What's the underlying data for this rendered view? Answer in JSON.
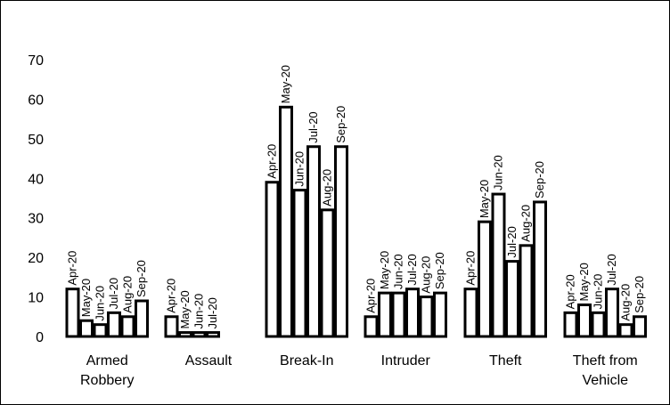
{
  "chart_data": {
    "type": "bar",
    "title": "",
    "xlabel": "",
    "ylabel": "",
    "ylim": [
      0,
      70
    ],
    "yticks": [
      0,
      10,
      20,
      30,
      40,
      50,
      60,
      70
    ],
    "grid": false,
    "legend": "none",
    "categories": [
      {
        "label": [
          "Armed",
          "Robbery"
        ],
        "bars": [
          {
            "month": "Apr-20",
            "value": 12
          },
          {
            "month": "May-20",
            "value": 4
          },
          {
            "month": "Jun-20",
            "value": 3
          },
          {
            "month": "Jul-20",
            "value": 6
          },
          {
            "month": "Aug-20",
            "value": 5
          },
          {
            "month": "Sep-20",
            "value": 9
          }
        ]
      },
      {
        "label": [
          "Assault"
        ],
        "bars": [
          {
            "month": "Apr-20",
            "value": 5
          },
          {
            "month": "May-20",
            "value": 1
          },
          {
            "month": "Jun-20",
            "value": 1
          },
          {
            "month": "Jul-20",
            "value": 1
          }
        ]
      },
      {
        "label": [
          "Break-In"
        ],
        "bars": [
          {
            "month": "Apr-20",
            "value": 39
          },
          {
            "month": "May-20",
            "value": 58
          },
          {
            "month": "Jun-20",
            "value": 37
          },
          {
            "month": "Jul-20",
            "value": 48
          },
          {
            "month": "Aug-20",
            "value": 32
          },
          {
            "month": "Sep-20",
            "value": 48
          }
        ]
      },
      {
        "label": [
          "Intruder"
        ],
        "bars": [
          {
            "month": "Apr-20",
            "value": 5
          },
          {
            "month": "May-20",
            "value": 11
          },
          {
            "month": "Jun-20",
            "value": 11
          },
          {
            "month": "Jul-20",
            "value": 12
          },
          {
            "month": "Aug-20",
            "value": 10
          },
          {
            "month": "Sep-20",
            "value": 11
          }
        ]
      },
      {
        "label": [
          "Theft"
        ],
        "bars": [
          {
            "month": "Apr-20",
            "value": 12
          },
          {
            "month": "May-20",
            "value": 29
          },
          {
            "month": "Jun-20",
            "value": 36
          },
          {
            "month": "Jul-20",
            "value": 19
          },
          {
            "month": "Aug-20",
            "value": 23
          },
          {
            "month": "Sep-20",
            "value": 34
          }
        ]
      },
      {
        "label": [
          "Theft from",
          "Vehicle"
        ],
        "bars": [
          {
            "month": "Apr-20",
            "value": 6
          },
          {
            "month": "May-20",
            "value": 8
          },
          {
            "month": "Jun-20",
            "value": 6
          },
          {
            "month": "Jul-20",
            "value": 12
          },
          {
            "month": "Aug-20",
            "value": 3
          },
          {
            "month": "Sep-20",
            "value": 5
          }
        ]
      }
    ]
  }
}
